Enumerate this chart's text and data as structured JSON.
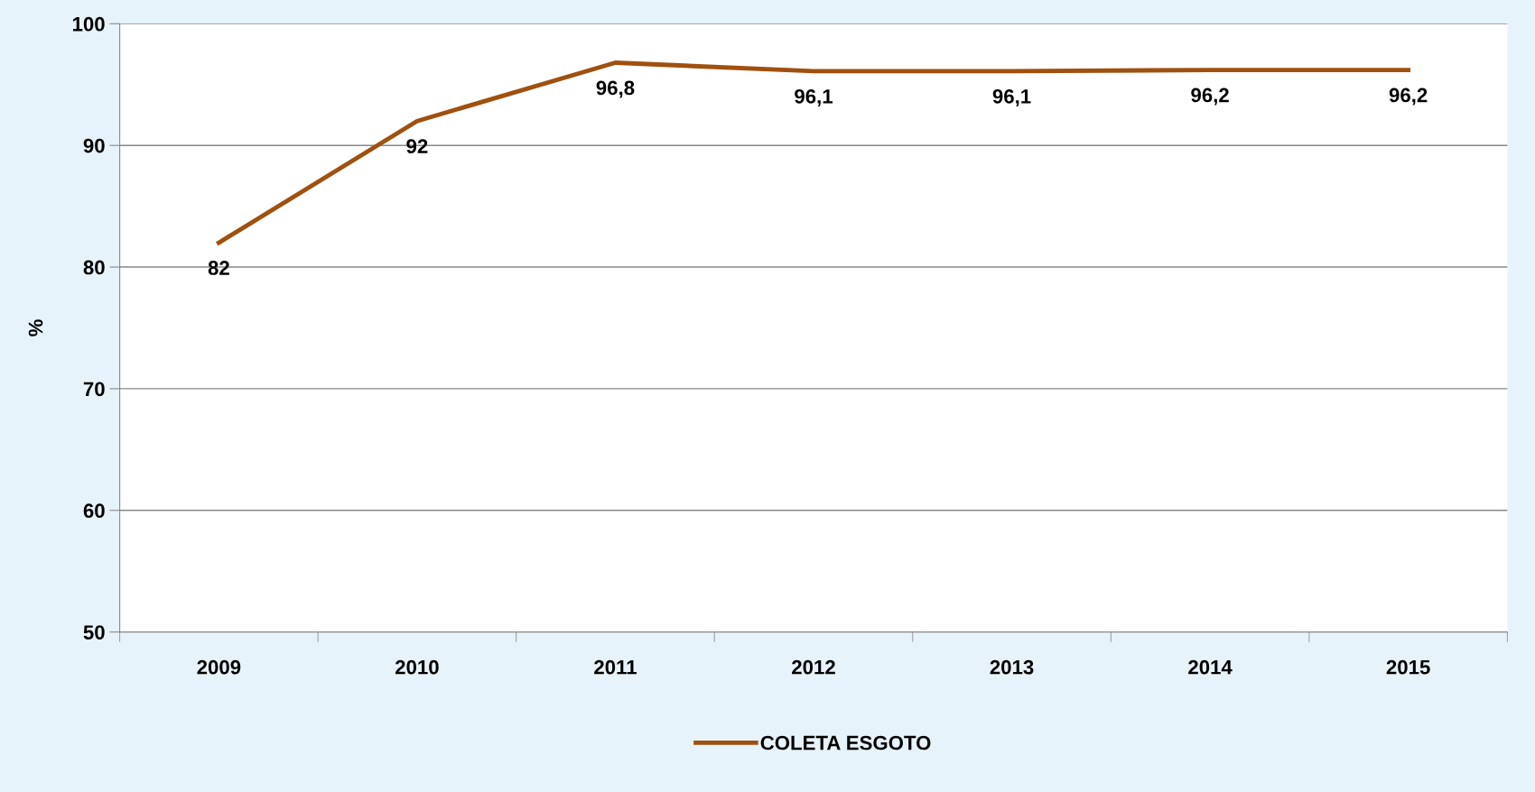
{
  "chart_data": {
    "type": "line",
    "ylabel": "%",
    "categories": [
      "2009",
      "2010",
      "2011",
      "2012",
      "2013",
      "2014",
      "2015"
    ],
    "series": [
      {
        "name": "COLETA ESGOTO",
        "color": "#a0500f",
        "values": [
          82,
          92,
          96.8,
          96.1,
          96.1,
          96.2,
          96.2
        ],
        "value_labels": [
          "82",
          "92",
          "96,8",
          "96,1",
          "96,1",
          "96,2",
          "96,2"
        ]
      }
    ],
    "ylim": [
      50,
      100
    ],
    "yticks": [
      50,
      60,
      70,
      80,
      90,
      100
    ],
    "grid": "y",
    "legend": "bottom",
    "marker": "none",
    "line_style": "solid"
  }
}
